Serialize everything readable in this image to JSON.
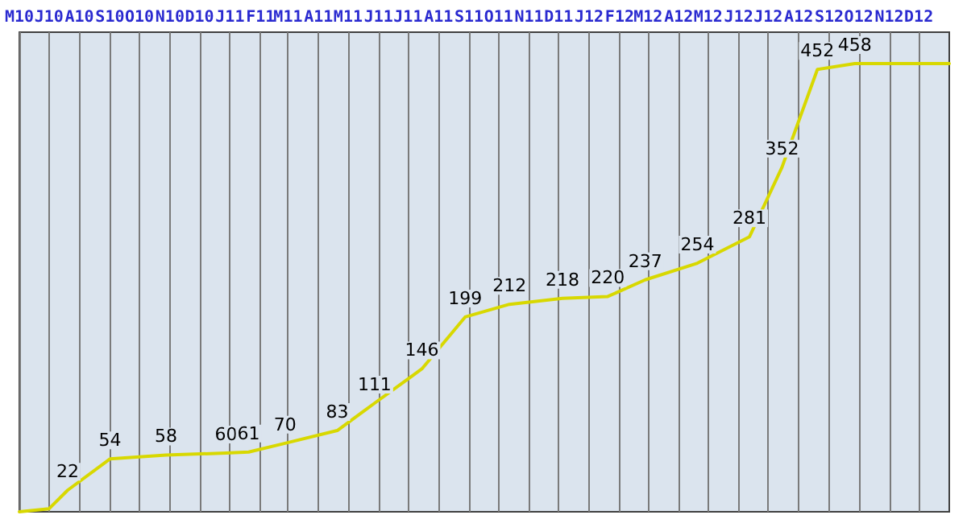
{
  "chart_data": {
    "type": "line",
    "x": [
      "2010-06-01",
      "2010-07-01",
      "2010-07-20",
      "2010-09-01",
      "2010-10-28",
      "2010-12-28",
      "2011-01-20",
      "2011-02-26",
      "2011-04-20",
      "2011-05-28",
      "2011-07-15",
      "2011-08-28",
      "2011-10-12",
      "2011-12-05",
      "2012-01-20",
      "2012-02-27",
      "2012-04-20",
      "2012-06-12",
      "2012-07-15",
      "2012-08-20",
      "2012-09-27",
      "2013-01-01"
    ],
    "series": [
      {
        "color": "#d8d800",
        "values": [
          0,
          3,
          22,
          54,
          58,
          60,
          61,
          70,
          83,
          111,
          146,
          199,
          212,
          218,
          220,
          237,
          254,
          281,
          352,
          452,
          458,
          458
        ],
        "value_labels": [
          null,
          null,
          "22",
          "54",
          "58",
          "60",
          "61",
          "70",
          "83",
          "111",
          "146",
          "199",
          "212",
          "218",
          "220",
          "237",
          "254",
          "281",
          "352",
          "452",
          "458",
          null
        ]
      }
    ],
    "xlim": [
      "2010-06-01",
      "2013-01-01"
    ],
    "xticks": [
      {
        "value": "2010-06-01",
        "label": "M10"
      },
      {
        "value": "2010-07-01",
        "label": "J10"
      },
      {
        "value": "2010-08-01",
        "label": "A10"
      },
      {
        "value": "2010-09-01",
        "label": "S10"
      },
      {
        "value": "2010-10-01",
        "label": "O10"
      },
      {
        "value": "2010-11-01",
        "label": "N10"
      },
      {
        "value": "2010-12-01",
        "label": "D10"
      },
      {
        "value": "2011-01-01",
        "label": "J11"
      },
      {
        "value": "2011-02-01",
        "label": "F11"
      },
      {
        "value": "2011-03-01",
        "label": "M11"
      },
      {
        "value": "2011-04-01",
        "label": "A11"
      },
      {
        "value": "2011-05-01",
        "label": "M11"
      },
      {
        "value": "2011-06-01",
        "label": "J11"
      },
      {
        "value": "2011-07-01",
        "label": "J11"
      },
      {
        "value": "2011-08-01",
        "label": "A11"
      },
      {
        "value": "2011-09-01",
        "label": "S11"
      },
      {
        "value": "2011-10-01",
        "label": "O11"
      },
      {
        "value": "2011-11-01",
        "label": "N11"
      },
      {
        "value": "2011-12-01",
        "label": "D11"
      },
      {
        "value": "2012-01-01",
        "label": "J12"
      },
      {
        "value": "2012-02-01",
        "label": "F12"
      },
      {
        "value": "2012-03-01",
        "label": "M12"
      },
      {
        "value": "2012-04-01",
        "label": "A12"
      },
      {
        "value": "2012-05-01",
        "label": "M12"
      },
      {
        "value": "2012-06-01",
        "label": "J12"
      },
      {
        "value": "2012-07-01",
        "label": "J12"
      },
      {
        "value": "2012-08-01",
        "label": "A12"
      },
      {
        "value": "2012-09-01",
        "label": "S12"
      },
      {
        "value": "2012-10-01",
        "label": "O12"
      },
      {
        "value": "2012-11-01",
        "label": "N12"
      },
      {
        "value": "2012-12-01",
        "label": "D12"
      }
    ],
    "ylim": [
      0,
      490
    ],
    "tick_labels": "x",
    "grid": "x",
    "marker": "none",
    "line_style": "solid"
  }
}
